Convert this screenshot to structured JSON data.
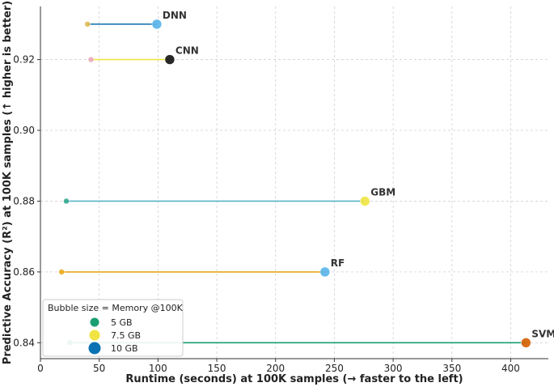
{
  "chart_data": {
    "type": "scatter",
    "xlabel": "Runtime (seconds) at 100K samples (→ faster to the left)",
    "ylabel": "Predictive Accuracy (R²) at 100K samples (↑ higher is better)",
    "xlim": [
      0,
      432
    ],
    "ylim": [
      0.8355,
      0.935
    ],
    "xticks": [
      0,
      50,
      100,
      150,
      200,
      250,
      300,
      350,
      400
    ],
    "yticks": [
      0.84,
      0.86,
      0.88,
      0.9,
      0.92
    ],
    "grid": true,
    "legend": {
      "title": "Bubble size = Memory @100K",
      "placement": "lower-left",
      "entries": [
        {
          "label": "5 GB",
          "color": "#1a9e74",
          "memory_gb": 5
        },
        {
          "label": "7.5 GB",
          "color": "#f0e442",
          "memory_gb": 7.5
        },
        {
          "label": "10 GB",
          "color": "#0a72b2",
          "memory_gb": 10
        }
      ]
    },
    "series": [
      {
        "name": "DNN",
        "start_runtime": 40,
        "end_runtime": 99,
        "accuracy": 0.93,
        "line_color": "#1f77b4",
        "start_color": "#e3b94b",
        "end_color": "#56b4e9"
      },
      {
        "name": "CNN",
        "start_runtime": 43,
        "end_runtime": 110,
        "accuracy": 0.92,
        "line_color": "#f0e442",
        "start_color": "#e8a6b8",
        "end_color": "#111111"
      },
      {
        "name": "GBM",
        "start_runtime": 22,
        "end_runtime": 276,
        "accuracy": 0.88,
        "line_color": "#56b4c9",
        "start_color": "#2aa58a",
        "end_color": "#f0e442"
      },
      {
        "name": "RF",
        "start_runtime": 18,
        "end_runtime": 242,
        "accuracy": 0.86,
        "line_color": "#e6a817",
        "start_color": "#e6a817",
        "end_color": "#56b4e9"
      },
      {
        "name": "SVM",
        "start_runtime": 25,
        "end_runtime": 413,
        "accuracy": 0.84,
        "line_color": "#1a9e74",
        "start_color": "#1a9e74",
        "end_color": "#d55e00"
      }
    ]
  }
}
